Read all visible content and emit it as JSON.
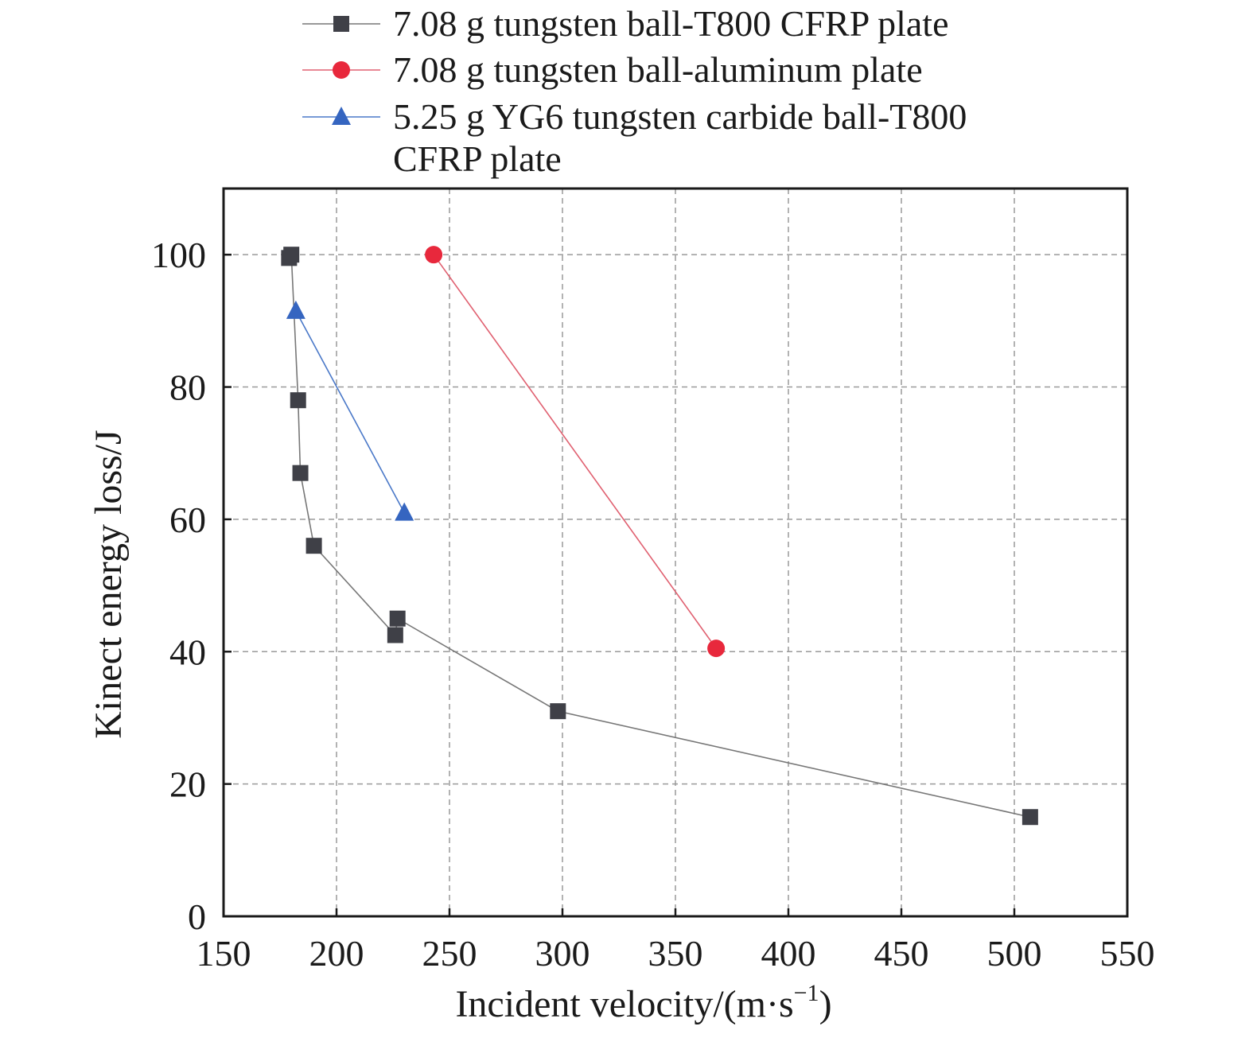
{
  "chart_data": {
    "type": "line",
    "title": "",
    "xlabel": "Incident velocity/(m·s",
    "xlabel_sup": "−1",
    "xlabel_close": ")",
    "ylabel": "Kinect energy loss/J",
    "xlim": [
      150,
      550
    ],
    "ylim": [
      0,
      110
    ],
    "xticks": [
      150,
      200,
      250,
      300,
      350,
      400,
      450,
      500,
      550
    ],
    "yticks": [
      0,
      20,
      40,
      60,
      80,
      100
    ],
    "grid": true,
    "legend_position": "top, outside plot area",
    "series": [
      {
        "name": "7.08 g tungsten ball-T800 CFRP plate",
        "marker": "square",
        "color": "#3f4047",
        "line_color": "#777777",
        "points": [
          [
            179,
            99.5
          ],
          [
            180,
            100
          ],
          [
            183,
            78
          ],
          [
            184,
            67
          ],
          [
            190,
            56
          ],
          [
            226,
            42.5
          ],
          [
            227,
            45
          ],
          [
            298,
            31
          ],
          [
            507,
            15
          ]
        ]
      },
      {
        "name": "7.08 g tungsten ball-aluminum plate",
        "marker": "circle",
        "color": "#e8283c",
        "line_color": "#e06070",
        "points": [
          [
            243,
            100
          ],
          [
            368,
            40.5
          ]
        ]
      },
      {
        "name": "5.25 g YG6 tungsten carbide ball-T800",
        "name_line2": "CFRP plate",
        "marker": "triangle",
        "color": "#3565c0",
        "line_color": "#4a78c8",
        "points": [
          [
            182,
            91.5
          ],
          [
            230,
            61
          ]
        ]
      }
    ]
  }
}
